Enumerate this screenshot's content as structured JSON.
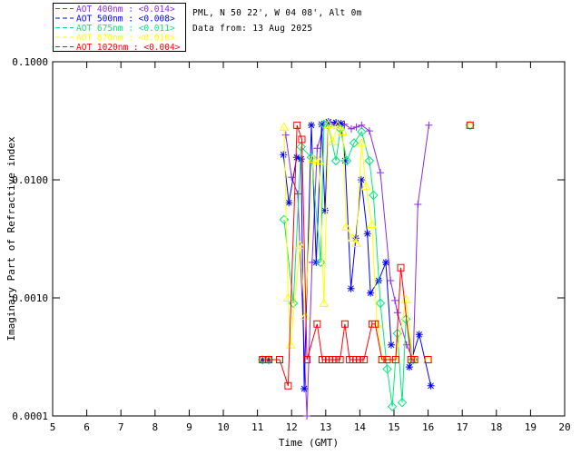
{
  "header": {
    "line1": "PML, N 50 22', W 04 08', Alt 0m",
    "line2": "Data from: 13 Aug 2025"
  },
  "legend": {
    "separator": " : ",
    "entries": [
      {
        "label": "AOT  400nm",
        "value": "<0.014>"
      },
      {
        "label": "AOT  500nm",
        "value": "<0.008>"
      },
      {
        "label": "AOT  675nm",
        "value": "<0.011>"
      },
      {
        "label": "AOT  870nm",
        "value": "<0.010>"
      },
      {
        "label": "AOT 1020nm",
        "value": "<0.004>"
      }
    ]
  },
  "chart_data": {
    "type": "line",
    "title": "",
    "xlabel": "Time (GMT)",
    "ylabel": "Imaginary Part of Refractive index",
    "xlim": [
      5,
      20
    ],
    "ylim": [
      0.0001,
      0.1
    ],
    "yscale": "log",
    "grid": false,
    "legend_position": "top-left-outside",
    "xticks": [
      5,
      6,
      7,
      8,
      9,
      10,
      11,
      12,
      13,
      14,
      15,
      16,
      17,
      18,
      19,
      20
    ],
    "yticks": [
      0.1,
      0.01,
      0.001,
      0.0001
    ],
    "ytick_labels": [
      "0.1000",
      "0.0100",
      "0.0010",
      "0.0001"
    ],
    "series": [
      {
        "name": "AOT 400nm",
        "wavelength_nm": 400,
        "aot_value": "<0.014>",
        "color": "#8A2BE2",
        "marker": "plus",
        "points": [
          [
            11.83,
            0.024
          ],
          [
            12.0,
            0.0105
          ],
          [
            12.18,
            0.0076
          ],
          [
            12.45,
            0.0001
          ],
          [
            12.6,
            0.002
          ],
          [
            12.75,
            0.0185
          ],
          [
            12.95,
            0.029
          ],
          [
            13.1,
            0.0295
          ],
          [
            13.25,
            0.03
          ],
          [
            13.4,
            0.029
          ],
          [
            13.55,
            0.0295
          ],
          [
            13.75,
            0.027
          ],
          [
            13.9,
            0.028
          ],
          [
            14.05,
            0.029
          ],
          [
            14.28,
            0.026
          ],
          [
            14.6,
            0.0115
          ],
          [
            14.9,
            0.0014
          ],
          [
            15.03,
            0.00095
          ],
          [
            15.1,
            0.00075
          ],
          [
            15.37,
            0.0004
          ],
          [
            15.56,
            0.0003
          ],
          [
            15.7,
            0.0062
          ],
          [
            16.02,
            0.029
          ]
        ]
      },
      {
        "name": "AOT 500nm",
        "wavelength_nm": 500,
        "aot_value": "<0.008>",
        "color": "#0000FF",
        "marker": "asterisk",
        "points": [
          [
            11.15,
            0.0003
          ],
          [
            11.33,
            0.0003
          ],
          [
            11.76,
            0.0163
          ],
          [
            11.92,
            0.0064
          ],
          [
            12.15,
            0.0155
          ],
          [
            12.28,
            0.015
          ],
          [
            12.37,
            0.00017
          ],
          [
            12.58,
            0.029
          ],
          [
            12.72,
            0.002
          ],
          [
            12.88,
            0.0295
          ],
          [
            12.98,
            0.0055
          ],
          [
            13.08,
            0.031
          ],
          [
            13.3,
            0.0305
          ],
          [
            13.45,
            0.03
          ],
          [
            13.57,
            0.0145
          ],
          [
            13.74,
            0.0012
          ],
          [
            13.88,
            0.0032
          ],
          [
            14.04,
            0.01
          ],
          [
            14.22,
            0.0035
          ],
          [
            14.31,
            0.0011
          ],
          [
            14.55,
            0.0014
          ],
          [
            14.76,
            0.002
          ],
          [
            14.92,
            0.0004
          ],
          [
            15.45,
            0.00026
          ],
          [
            15.74,
            0.00049
          ],
          [
            16.08,
            0.00018
          ]
        ]
      },
      {
        "name": "AOT 675nm",
        "wavelength_nm": 675,
        "aot_value": "<0.011>",
        "color": "#00E87A",
        "marker": "diamond",
        "points": [
          [
            11.15,
            0.0003
          ],
          [
            11.33,
            0.0003
          ],
          [
            11.78,
            0.0046
          ],
          [
            12.05,
            0.0009
          ],
          [
            12.28,
            0.019
          ],
          [
            12.58,
            0.0155
          ],
          [
            12.85,
            0.002
          ],
          [
            12.95,
            0.0295
          ],
          [
            13.08,
            0.029
          ],
          [
            13.3,
            0.0145
          ],
          [
            13.43,
            0.027
          ],
          [
            13.62,
            0.0145
          ],
          [
            13.83,
            0.0205
          ],
          [
            14.05,
            0.0255
          ],
          [
            14.28,
            0.0145
          ],
          [
            14.4,
            0.0074
          ],
          [
            14.6,
            0.0009
          ],
          [
            14.8,
            0.00025
          ],
          [
            14.95,
            0.00012
          ],
          [
            15.1,
            0.0005
          ],
          [
            15.24,
            0.00013
          ],
          [
            15.35,
            0.00066
          ],
          [
            15.56,
            0.0003
          ],
          [
            17.23,
            0.029
          ]
        ]
      },
      {
        "name": "AOT 870nm",
        "wavelength_nm": 870,
        "aot_value": "<0.010>",
        "color": "#FFFF00",
        "marker": "triangle",
        "points": [
          [
            11.15,
            0.0003
          ],
          [
            11.33,
            0.0003
          ],
          [
            11.78,
            0.028
          ],
          [
            11.9,
            0.001
          ],
          [
            11.97,
            0.0004
          ],
          [
            12.25,
            0.0028
          ],
          [
            12.4,
            0.0007
          ],
          [
            12.63,
            0.015
          ],
          [
            12.8,
            0.0145
          ],
          [
            12.95,
            0.0009
          ],
          [
            13.08,
            0.0295
          ],
          [
            13.2,
            0.021
          ],
          [
            13.35,
            0.029
          ],
          [
            13.5,
            0.0255
          ],
          [
            13.6,
            0.004
          ],
          [
            13.78,
            0.0032
          ],
          [
            13.9,
            0.0029
          ],
          [
            14.05,
            0.0205
          ],
          [
            14.18,
            0.0088
          ],
          [
            14.35,
            0.0042
          ],
          [
            14.5,
            0.0006
          ],
          [
            14.65,
            0.0003
          ],
          [
            14.8,
            0.0003
          ],
          [
            15.05,
            0.0003
          ],
          [
            15.35,
            0.00097
          ],
          [
            15.56,
            0.0003
          ],
          [
            16.0,
            0.0003
          ],
          [
            17.23,
            0.029
          ]
        ]
      },
      {
        "name": "AOT 1020nm",
        "wavelength_nm": 1020,
        "aot_value": "<0.004>",
        "color": "#FF0000",
        "marker": "square",
        "points": [
          [
            11.15,
            0.0003
          ],
          [
            11.33,
            0.0003
          ],
          [
            11.65,
            0.0003
          ],
          [
            11.9,
            0.00018
          ],
          [
            12.16,
            0.029
          ],
          [
            12.3,
            0.022
          ],
          [
            12.45,
            0.0003
          ],
          [
            12.75,
            0.0006
          ],
          [
            12.9,
            0.0003
          ],
          [
            13.0,
            0.0003
          ],
          [
            13.1,
            0.0003
          ],
          [
            13.2,
            0.0003
          ],
          [
            13.3,
            0.0003
          ],
          [
            13.42,
            0.0003
          ],
          [
            13.56,
            0.0006
          ],
          [
            13.7,
            0.0003
          ],
          [
            13.8,
            0.0003
          ],
          [
            13.9,
            0.0003
          ],
          [
            14.0,
            0.0003
          ],
          [
            14.12,
            0.0003
          ],
          [
            14.36,
            0.0006
          ],
          [
            14.45,
            0.0006
          ],
          [
            14.65,
            0.0003
          ],
          [
            14.8,
            0.0003
          ],
          [
            15.05,
            0.0003
          ],
          [
            15.2,
            0.0018
          ],
          [
            15.5,
            0.0003
          ],
          [
            15.6,
            0.0003
          ],
          [
            16.0,
            0.0003
          ],
          [
            17.23,
            0.029
          ]
        ]
      }
    ]
  }
}
